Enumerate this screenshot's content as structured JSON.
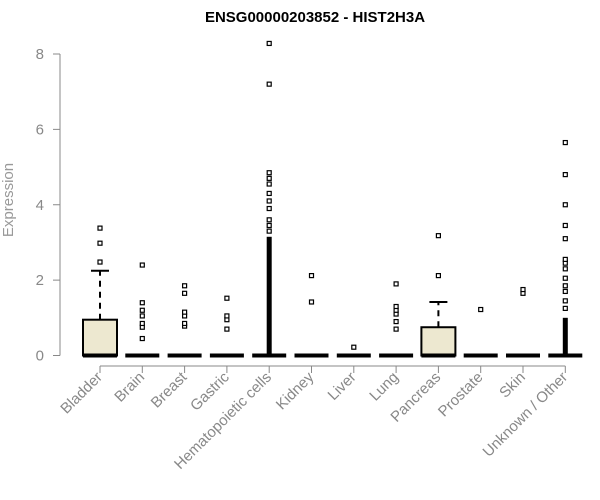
{
  "chart_data": {
    "type": "boxplot",
    "title": "ENSG00000203852 - HIST2H3A",
    "ylabel": "Expression",
    "xlabel": "",
    "ylim": [
      0,
      8.4
    ],
    "yticks": [
      0,
      2,
      4,
      6,
      8
    ],
    "grid": false,
    "box_fill": "#ede8d0",
    "axis_color": "#888888",
    "categories": [
      "Bladder",
      "Brain",
      "Breast",
      "Gastric",
      "Hematopoietic cells",
      "Kidney",
      "Liver",
      "Lung",
      "Pancreas",
      "Prostate",
      "Skin",
      "Unknown / Other"
    ],
    "boxes": [
      {
        "category": "Bladder",
        "min": 0,
        "q1": 0,
        "median": 0,
        "q3": 0.95,
        "max": 2.25,
        "outliers": [
          2.48,
          2.98,
          3.38
        ]
      },
      {
        "category": "Brain",
        "min": 0,
        "q1": 0,
        "median": 0,
        "q3": 0,
        "max": 0,
        "outliers": [
          0.45,
          0.75,
          0.85,
          1.05,
          1.2,
          1.4,
          2.4
        ]
      },
      {
        "category": "Breast",
        "min": 0,
        "q1": 0,
        "median": 0,
        "q3": 0,
        "max": 0,
        "outliers": [
          0.78,
          0.85,
          1.05,
          1.15,
          1.65,
          1.85
        ]
      },
      {
        "category": "Gastric",
        "min": 0,
        "q1": 0,
        "median": 0,
        "q3": 0,
        "max": 0,
        "outliers": [
          0.7,
          0.95,
          1.05,
          1.52
        ]
      },
      {
        "category": "Hematopoietic cells",
        "min": 0,
        "q1": 0,
        "median": 0,
        "q3": 0,
        "max": 0,
        "outliers_dense": [
          0.05,
          3.15
        ],
        "outliers": [
          3.3,
          3.45,
          3.6,
          3.9,
          4.1,
          4.3,
          4.55,
          4.7,
          4.85,
          7.2,
          8.28
        ]
      },
      {
        "category": "Kidney",
        "min": 0,
        "q1": 0,
        "median": 0,
        "q3": 0,
        "max": 0,
        "outliers": [
          1.42,
          2.12
        ]
      },
      {
        "category": "Liver",
        "min": 0,
        "q1": 0,
        "median": 0,
        "q3": 0,
        "max": 0,
        "outliers": [
          0.22
        ]
      },
      {
        "category": "Lung",
        "min": 0,
        "q1": 0,
        "median": 0,
        "q3": 0,
        "max": 0,
        "outliers": [
          0.7,
          0.9,
          1.1,
          1.2,
          1.3,
          1.9
        ]
      },
      {
        "category": "Pancreas",
        "min": 0,
        "q1": 0,
        "median": 0,
        "q3": 0.75,
        "max": 1.42,
        "outliers": [
          2.12,
          3.18
        ]
      },
      {
        "category": "Prostate",
        "min": 0,
        "q1": 0,
        "median": 0,
        "q3": 0,
        "max": 0,
        "outliers": [
          1.22
        ]
      },
      {
        "category": "Skin",
        "min": 0,
        "q1": 0,
        "median": 0,
        "q3": 0,
        "max": 0,
        "outliers": [
          1.65,
          1.75
        ]
      },
      {
        "category": "Unknown / Other",
        "min": 0,
        "q1": 0,
        "median": 0,
        "q3": 0,
        "max": 0,
        "outliers_dense": [
          0.05,
          1.0
        ],
        "outliers": [
          1.25,
          1.45,
          1.7,
          1.85,
          2.05,
          2.3,
          2.45,
          2.55,
          3.1,
          3.45,
          4.0,
          4.8,
          5.65
        ]
      }
    ]
  }
}
